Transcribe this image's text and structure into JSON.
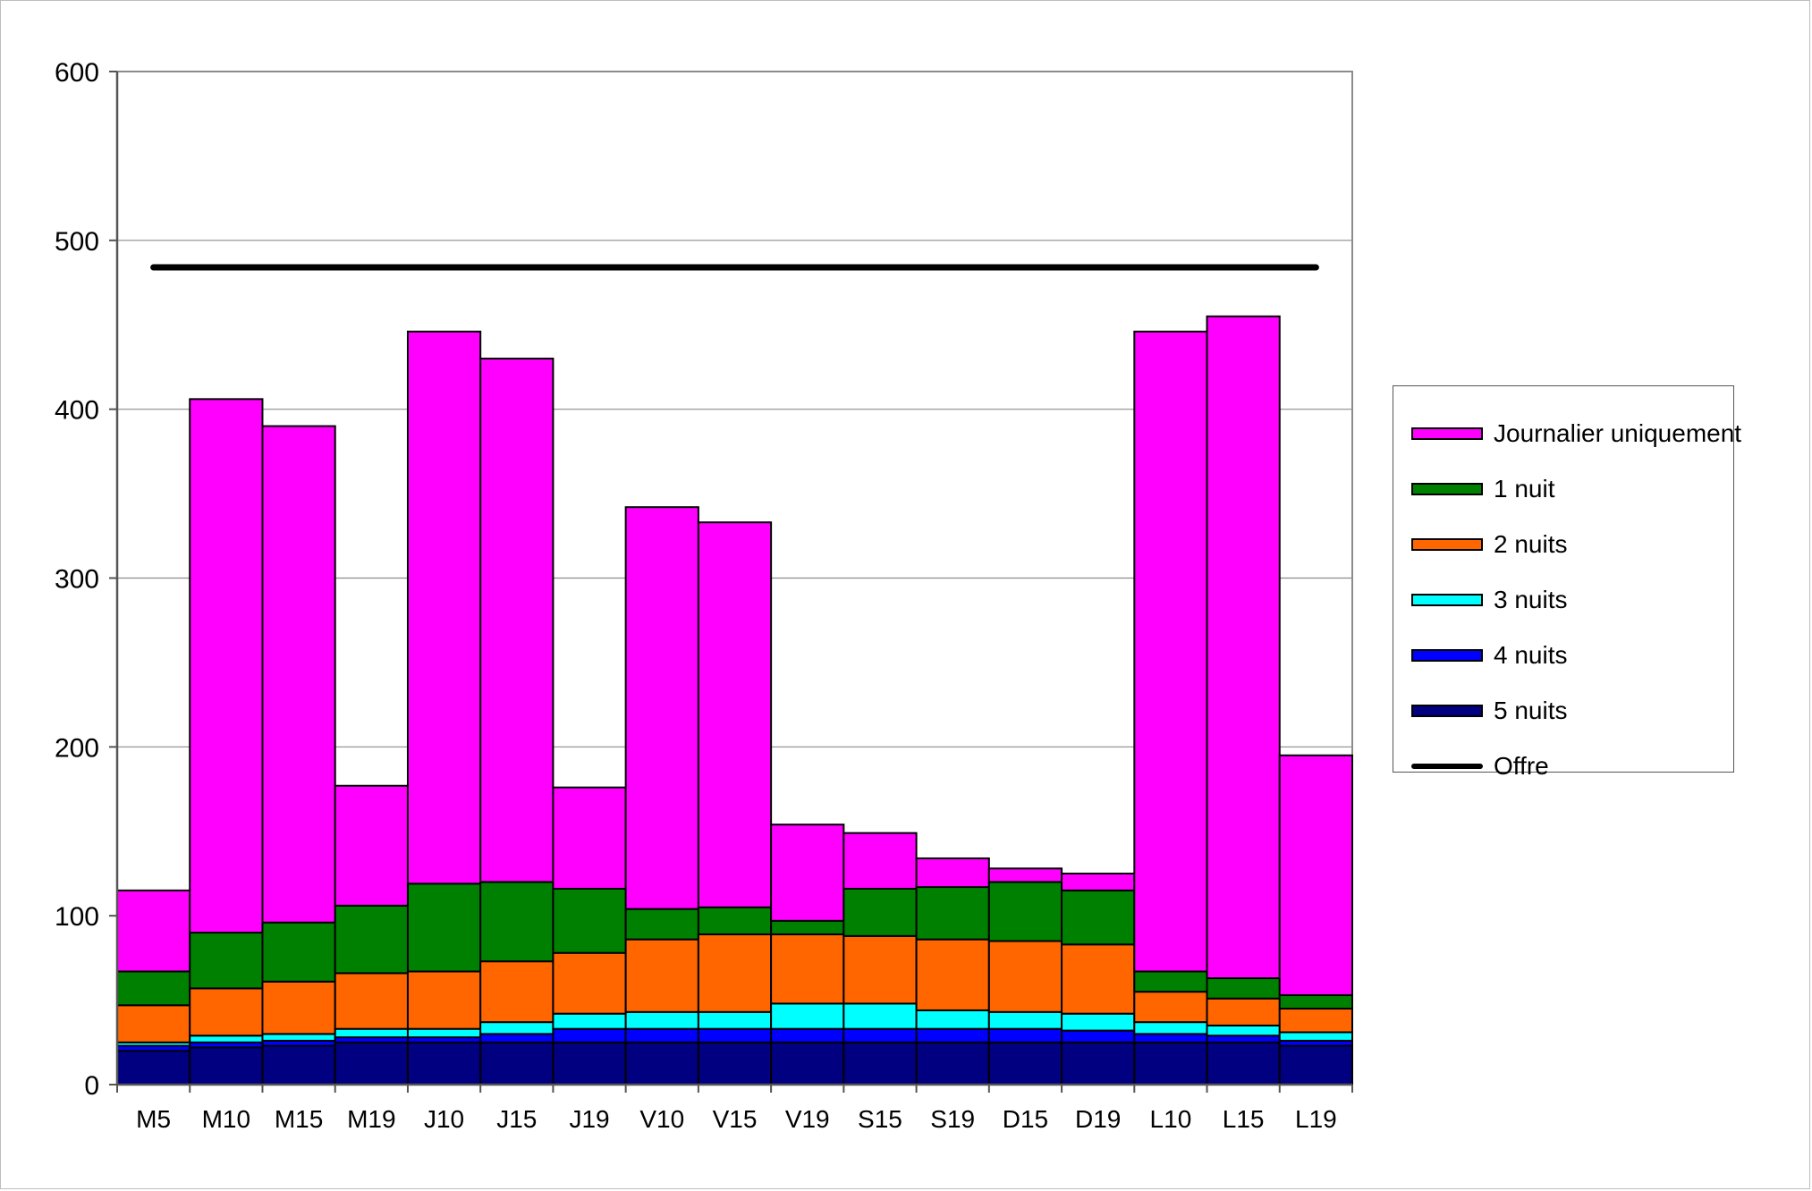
{
  "chart_data": {
    "type": "bar",
    "stacked": true,
    "categories": [
      "M5",
      "M10",
      "M15",
      "M19",
      "J10",
      "J15",
      "J19",
      "V10",
      "V15",
      "V19",
      "S15",
      "S19",
      "D15",
      "D19",
      "L10",
      "L15",
      "L19"
    ],
    "series": [
      {
        "name": "5 nuits",
        "color": "#000080",
        "values": [
          20,
          22,
          23,
          25,
          25,
          25,
          25,
          25,
          25,
          25,
          25,
          25,
          25,
          25,
          25,
          25,
          23
        ]
      },
      {
        "name": "4 nuits",
        "color": "#0000ff",
        "values": [
          3,
          3,
          3,
          3,
          3,
          5,
          8,
          8,
          8,
          8,
          8,
          8,
          8,
          7,
          5,
          4,
          3
        ]
      },
      {
        "name": "3 nuits",
        "color": "#00ffff",
        "values": [
          2,
          4,
          4,
          5,
          5,
          7,
          9,
          10,
          10,
          15,
          15,
          11,
          10,
          10,
          7,
          6,
          5
        ]
      },
      {
        "name": "2 nuits",
        "color": "#ff6600",
        "values": [
          22,
          28,
          31,
          33,
          34,
          36,
          36,
          43,
          46,
          41,
          40,
          42,
          42,
          41,
          18,
          16,
          14
        ]
      },
      {
        "name": "1 nuit",
        "color": "#008000",
        "values": [
          20,
          33,
          35,
          40,
          52,
          47,
          38,
          18,
          16,
          8,
          28,
          31,
          35,
          32,
          12,
          12,
          8
        ]
      },
      {
        "name": "Journalier uniquement",
        "color": "#ff00ff",
        "values": [
          48,
          316,
          294,
          71,
          327,
          310,
          60,
          238,
          228,
          57,
          33,
          17,
          8,
          10,
          379,
          392,
          142
        ]
      }
    ],
    "line_series": {
      "name": "Offre",
      "color": "#000000",
      "value": 484
    },
    "ylim": [
      0,
      600
    ],
    "yticks": [
      "0",
      "100",
      "200",
      "300",
      "400",
      "500",
      "600"
    ],
    "legend_position": "right",
    "grid": true,
    "title": "",
    "xlabel": "",
    "ylabel": ""
  },
  "legend": {
    "items": [
      {
        "label": "Journalier uniquement",
        "color": "#ff00ff",
        "kind": "box"
      },
      {
        "label": "1 nuit",
        "color": "#008000",
        "kind": "box"
      },
      {
        "label": "2 nuits",
        "color": "#ff6600",
        "kind": "box"
      },
      {
        "label": "3 nuits",
        "color": "#00ffff",
        "kind": "box"
      },
      {
        "label": "4 nuits",
        "color": "#0000ff",
        "kind": "box"
      },
      {
        "label": "5 nuits",
        "color": "#000080",
        "kind": "box"
      },
      {
        "label": "Offre",
        "color": "#000000",
        "kind": "line"
      }
    ]
  }
}
